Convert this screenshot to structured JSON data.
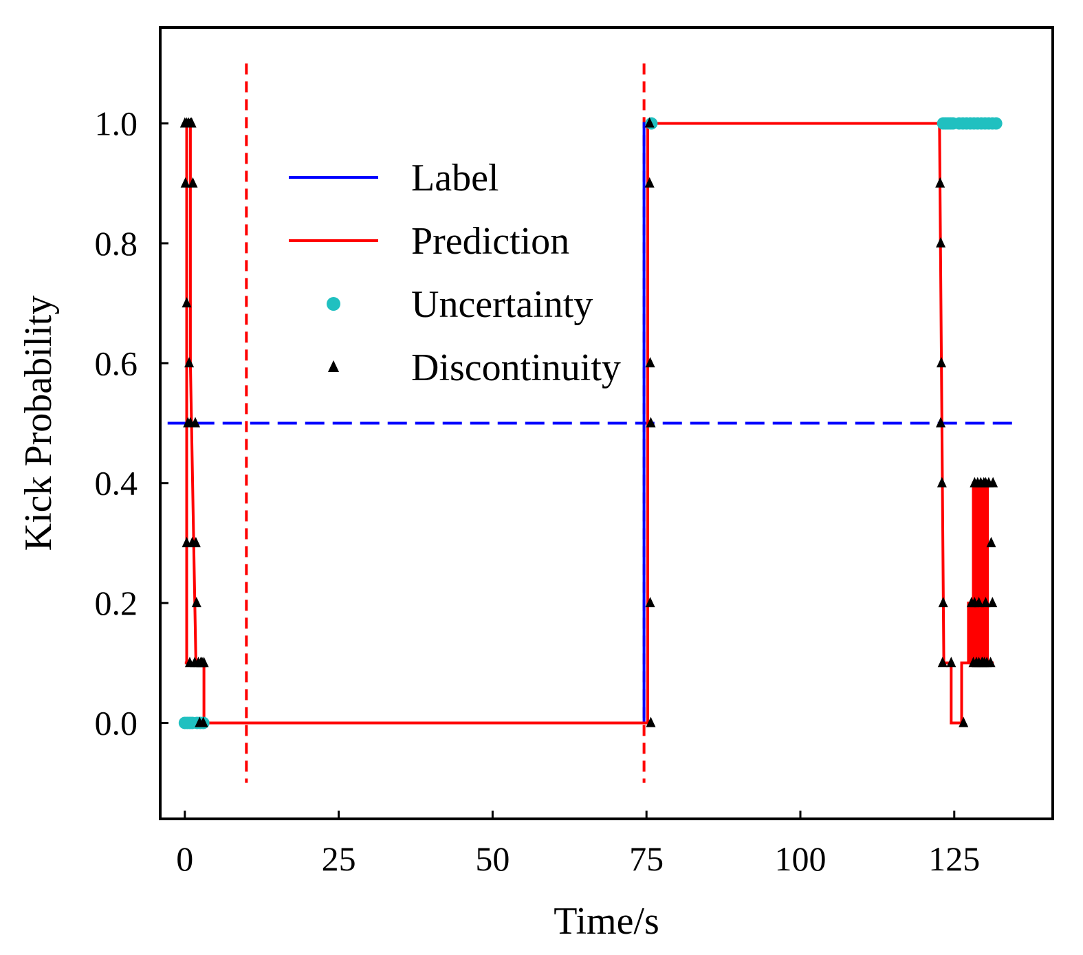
{
  "chart_data": {
    "type": "line",
    "title": "",
    "xlabel": "Time/s",
    "ylabel": "Kick Probability",
    "xlim": [
      -4,
      141
    ],
    "ylim": [
      -0.16,
      1.16
    ],
    "xticks": [
      0,
      25,
      50,
      75,
      100,
      125
    ],
    "xtick_labels": [
      "0",
      "25",
      "50",
      "75",
      "100",
      "125"
    ],
    "yticks": [
      0.0,
      0.2,
      0.4,
      0.6,
      0.8,
      1.0
    ],
    "ytick_labels": [
      "0.0",
      "0.2",
      "0.4",
      "0.6",
      "0.8",
      "1.0"
    ],
    "grid": false,
    "legend_position": "upper-left",
    "legend": [
      {
        "name": "Label",
        "marker": "line",
        "color": "#0000ff"
      },
      {
        "name": "Prediction",
        "marker": "line",
        "color": "#ff0000"
      },
      {
        "name": "Uncertainty",
        "marker": "circle",
        "color": "#20c0c0"
      },
      {
        "name": "Discontinuity",
        "marker": "triangle",
        "color": "#000000"
      }
    ],
    "series": [
      {
        "name": "Label",
        "color": "#0000ff",
        "x": [
          0,
          74.6,
          74.6,
          131
        ],
        "y": [
          0,
          0,
          1,
          1
        ]
      },
      {
        "name": "Prediction",
        "color": "#ff0000",
        "x": [
          0,
          0.3,
          0.3,
          0.9,
          0.9,
          1.8,
          2.5,
          2.5,
          3.1,
          3.1,
          74.6,
          75.2,
          75.2,
          122.6,
          123.3,
          123.3,
          124.5,
          124.5,
          126.2,
          126.2,
          127.3,
          127.3,
          127.7,
          127.7,
          128.1,
          128.1,
          128.4,
          128.4,
          128.8,
          128.8,
          129.1,
          129.1,
          129.4,
          129.4,
          129.7,
          129.7,
          130.0,
          130.0,
          130.4,
          130.4,
          131.4
        ],
        "y": [
          0.1,
          0.1,
          1.0,
          1.0,
          0.6,
          0.1,
          0.1,
          0.1,
          0.1,
          0.0,
          0.0,
          0.0,
          1.0,
          1.0,
          0.1,
          0.1,
          0.1,
          0.0,
          0.0,
          0.1,
          0.1,
          0.2,
          0.2,
          0.1,
          0.1,
          0.4,
          0.4,
          0.1,
          0.1,
          0.4,
          0.4,
          0.1,
          0.1,
          0.4,
          0.4,
          0.1,
          0.1,
          0.4,
          0.4,
          0.1,
          0.1
        ]
      },
      {
        "name": "Uncertainty",
        "color": "#20c0c0",
        "x": [
          0.0,
          0.4,
          0.8,
          1.2,
          2.0,
          2.5,
          3.0,
          75.8,
          123.2,
          123.6,
          124.0,
          124.4,
          124.8,
          125.8,
          126.4,
          127.0,
          127.6,
          128.2,
          128.8,
          129.4,
          130.0,
          130.6,
          131.2,
          131.8
        ],
        "y": [
          0,
          0,
          0,
          0,
          0,
          0,
          0,
          1,
          1,
          1,
          1,
          1,
          1,
          1,
          1,
          1,
          1,
          1,
          1,
          1,
          1,
          1,
          1,
          1
        ]
      },
      {
        "name": "Discontinuity",
        "color": "#000000",
        "x": [
          0.0,
          0.3,
          0.6,
          0.9,
          1.1,
          1.3,
          0.1,
          0.3,
          0.7,
          0.9,
          1.7,
          0.5,
          1.2,
          1.8,
          0.3,
          0.8,
          1.6,
          1.9,
          2.2,
          2.6,
          2.8,
          3.1,
          3.0,
          2.4,
          75.5,
          75.6,
          75.6,
          75.7,
          75.7,
          75.5,
          122.7,
          122.8,
          122.9,
          123.0,
          123.2,
          122.8,
          123.1,
          124.5,
          126.5,
          127.8,
          128.1,
          128.3,
          128.6,
          128.8,
          129.0,
          129.3,
          129.5,
          129.8,
          130.1,
          130.3,
          130.6,
          130.9,
          131.2,
          131.0,
          131.3,
          128.3,
          129.0,
          128.6,
          129.6,
          129.9,
          130.1
        ],
        "y": [
          1.0,
          1.0,
          1.0,
          1.0,
          1.0,
          0.9,
          0.9,
          0.7,
          0.6,
          0.5,
          0.5,
          0.5,
          0.3,
          0.3,
          0.3,
          0.1,
          0.1,
          0.2,
          0.1,
          0.1,
          0.1,
          0.1,
          0.0,
          0.0,
          0.9,
          0.6,
          0.2,
          0.0,
          0.5,
          1.0,
          0.9,
          0.8,
          0.6,
          0.4,
          0.2,
          0.5,
          0.1,
          0.1,
          0.0,
          0.2,
          0.1,
          0.2,
          0.1,
          0.4,
          0.1,
          0.4,
          0.1,
          0.4,
          0.2,
          0.1,
          0.4,
          0.1,
          0.2,
          0.3,
          0.4,
          0.4,
          0.2,
          0.1,
          0.1,
          0.1,
          0.4
        ]
      }
    ],
    "reference_lines": [
      {
        "name": "threshold",
        "orientation": "horizontal",
        "value": 0.5,
        "color": "#0000ff",
        "style": "dashed"
      },
      {
        "name": "start",
        "orientation": "vertical",
        "value": 10,
        "color": "#ff0000",
        "style": "dashed"
      },
      {
        "name": "kick",
        "orientation": "vertical",
        "value": 74.6,
        "color": "#ff0000",
        "style": "dashed"
      }
    ]
  }
}
